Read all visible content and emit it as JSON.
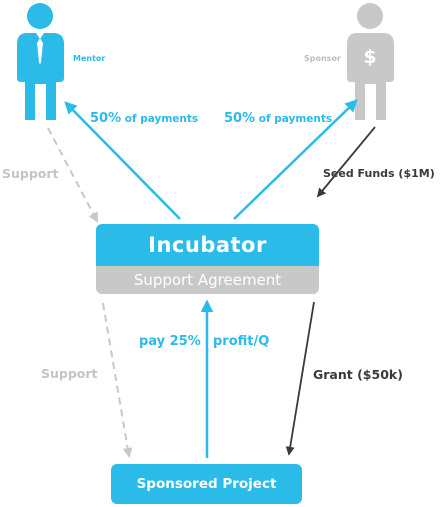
{
  "roles": {
    "mentor": "Mentor",
    "sponsor": "Sponsor"
  },
  "boxes": {
    "incubator": "Incubator",
    "support_agreement": "Support Agreement",
    "sponsored_project": "Sponsored Project"
  },
  "flows": {
    "payments_to_mentor": {
      "percent": "50%",
      "text": " of payments"
    },
    "payments_to_sponsor": {
      "percent": "50%",
      "text": " of payments"
    },
    "seed_funds": "Seed Funds ($1M)",
    "support_top": "Support",
    "support_bottom": "Support",
    "grant": "Grant ($50k)",
    "pay": "pay 25%",
    "profit": "profit/Q"
  },
  "colors": {
    "accent_blue": "#2bbbe8",
    "muted_gray": "#c8c8c8",
    "dark_arrow": "#3a3a3a"
  },
  "icons": {
    "mentor": "person-with-tie-icon",
    "sponsor": "person-dollar-icon"
  }
}
